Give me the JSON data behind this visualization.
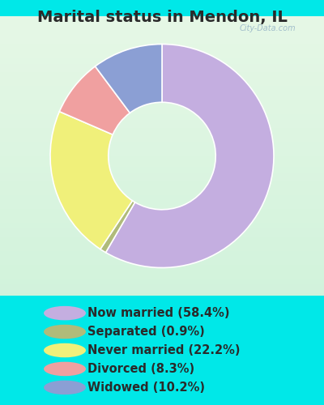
{
  "title": "Marital status in Mendon, IL",
  "slices": [
    58.4,
    0.9,
    22.2,
    8.3,
    10.2
  ],
  "labels": [
    "Now married (58.4%)",
    "Separated (0.9%)",
    "Never married (22.2%)",
    "Divorced (8.3%)",
    "Widowed (10.2%)"
  ],
  "colors": [
    "#c4aee0",
    "#b0bb7a",
    "#f0f07a",
    "#f0a0a0",
    "#8b9fd4"
  ],
  "bg_color": "#00e8e8",
  "chart_bg_color": "#ddf0e0",
  "title_fontsize": 14,
  "legend_fontsize": 10.5,
  "watermark": "City-Data.com",
  "donut_width": 0.52,
  "start_angle": 90
}
